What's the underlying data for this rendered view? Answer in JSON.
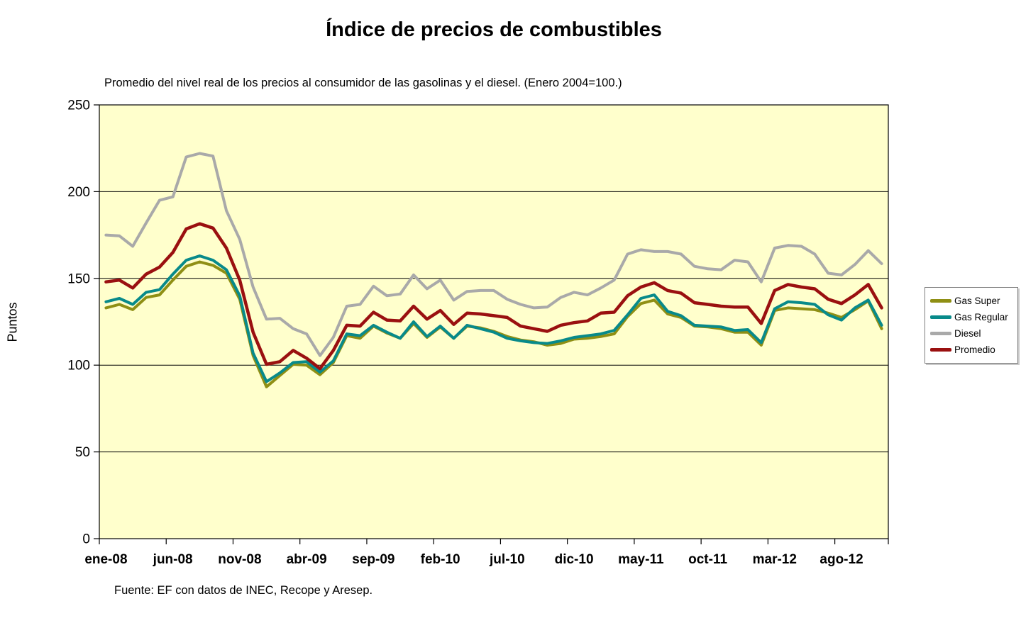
{
  "chart_data": {
    "type": "line",
    "title": "Índice de precios de combustibles",
    "subtitle": "Promedio del nivel real de los precios al consumidor de las gasolinas y el diesel. (Enero 2004=100.)",
    "ylabel": "Puntos",
    "source": "Fuente: EF con datos de INEC, Recope y Aresep.",
    "ylim": [
      0,
      250
    ],
    "y_ticks": [
      0,
      50,
      100,
      150,
      200,
      250
    ],
    "grid": "horizontal",
    "legend_position": "right",
    "plot_bg": "#FFFFCC",
    "x_label_interval": 5,
    "x": [
      "ene-08",
      "feb-08",
      "mar-08",
      "abr-08",
      "may-08",
      "jun-08",
      "jul-08",
      "ago-08",
      "sep-08",
      "oct-08",
      "nov-08",
      "dic-08",
      "ene-09",
      "feb-09",
      "mar-09",
      "abr-09",
      "may-09",
      "jun-09",
      "jul-09",
      "ago-09",
      "sep-09",
      "oct-09",
      "nov-09",
      "dic-09",
      "ene-10",
      "feb-10",
      "mar-10",
      "abr-10",
      "may-10",
      "jun-10",
      "jul-10",
      "ago-10",
      "sep-10",
      "oct-10",
      "nov-10",
      "dic-10",
      "ene-11",
      "feb-11",
      "mar-11",
      "abr-11",
      "may-11",
      "jun-11",
      "jul-11",
      "ago-11",
      "sep-11",
      "oct-11",
      "nov-11",
      "dic-11",
      "ene-12",
      "feb-12",
      "mar-12",
      "abr-12",
      "may-12",
      "jun-12",
      "jul-12",
      "ago-12",
      "sep-12",
      "oct-12",
      "nov-12"
    ],
    "series": [
      {
        "name": "Gas Super",
        "color": "#8F8F14",
        "values": [
          133,
          135,
          132,
          139,
          140.5,
          149,
          157,
          159.5,
          157.5,
          153,
          138,
          105.5,
          87.5,
          94,
          100.5,
          100,
          94.5,
          101.5,
          117,
          115.5,
          122.5,
          118.5,
          115.5,
          124,
          116,
          122,
          115.5,
          122.5,
          121.5,
          119.5,
          116.5,
          114.5,
          113.5,
          111.5,
          112.5,
          115,
          115.5,
          116.5,
          118,
          128,
          135.5,
          137.5,
          129.5,
          127.5,
          122.5,
          122,
          121,
          119,
          119,
          111.5,
          131.5,
          133,
          132.5,
          132,
          130,
          127.5,
          132,
          137,
          121
        ]
      },
      {
        "name": "Gas Regular",
        "color": "#088A8A",
        "values": [
          136.5,
          138.5,
          135,
          142,
          143.5,
          152.5,
          160.5,
          163,
          160.5,
          155,
          140,
          107,
          90.5,
          95.5,
          101.5,
          102,
          96,
          102.5,
          118,
          117,
          123,
          119,
          115.5,
          125,
          116.5,
          122.5,
          115.5,
          123,
          121,
          119,
          115.5,
          114,
          113,
          112.5,
          114,
          116,
          117,
          118,
          120,
          129,
          138.5,
          140.5,
          131,
          128.5,
          123,
          122.5,
          122,
          120,
          120.5,
          113,
          132.5,
          136.5,
          136,
          135,
          129,
          126,
          133,
          137.5,
          123
        ]
      },
      {
        "name": "Diesel",
        "color": "#A9A9A9",
        "values": [
          175,
          174.5,
          168.5,
          182,
          195,
          197,
          220,
          222,
          220.5,
          189,
          172.5,
          145,
          126.5,
          127,
          121,
          118,
          105.5,
          116,
          134,
          135,
          145.5,
          140,
          141,
          152,
          144,
          149,
          137.5,
          142.5,
          143,
          143,
          138,
          135,
          133,
          133.5,
          139,
          142,
          140.5,
          144.5,
          149,
          164,
          166.5,
          165.5,
          165.5,
          164,
          157,
          155.5,
          155,
          160.5,
          159.5,
          148,
          167.5,
          169,
          168.5,
          164,
          153,
          152,
          158,
          166,
          158.5
        ]
      },
      {
        "name": "Promedio",
        "color": "#9A1010",
        "values": [
          148,
          149,
          144.5,
          152.5,
          156.5,
          165,
          178.5,
          181.5,
          179,
          167.5,
          149,
          119,
          100.5,
          102,
          108.5,
          104,
          98,
          108.5,
          123,
          122.5,
          130.5,
          126,
          125.5,
          134,
          126.5,
          131.5,
          123.5,
          130,
          129.5,
          128.5,
          127.5,
          122.5,
          121,
          119.5,
          123,
          124.5,
          125.5,
          130,
          130.5,
          140,
          145,
          147.5,
          143,
          141.5,
          136,
          135,
          134,
          133.5,
          133.5,
          124,
          143,
          146.5,
          145,
          144,
          138,
          135.5,
          140.5,
          146.5,
          133
        ]
      }
    ]
  }
}
